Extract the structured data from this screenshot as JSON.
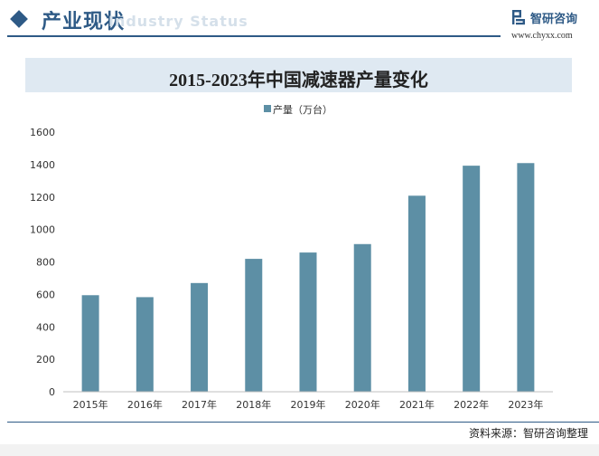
{
  "header": {
    "section_title": "产业现状",
    "section_title_ghost": "Industry Status",
    "brand_name": "智研咨询",
    "brand_url": "www.chyxx.com"
  },
  "source": "资料来源：智研咨询整理",
  "colors": {
    "accent": "#2e5a86",
    "bar": "#5d8fa5",
    "title_band": "#dfe9f2"
  },
  "chart_data": {
    "type": "bar",
    "title": "2015-2023年中国减速器产量变化",
    "categories": [
      "2015年",
      "2016年",
      "2017年",
      "2018年",
      "2019年",
      "2020年",
      "2021年",
      "2022年",
      "2023年"
    ],
    "series": [
      {
        "name": "产量（万台）",
        "values": [
          595,
          583,
          670,
          819,
          858,
          910,
          1208,
          1393,
          1409
        ]
      }
    ],
    "xlabel": "",
    "ylabel": "",
    "ylim": [
      0,
      1600
    ],
    "yticks": [
      0,
      200,
      400,
      600,
      800,
      1000,
      1200,
      1400,
      1600
    ],
    "grid": false,
    "legend_position": "top-center"
  }
}
